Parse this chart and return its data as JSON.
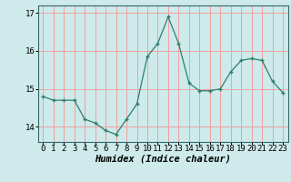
{
  "x": [
    0,
    1,
    2,
    3,
    4,
    5,
    6,
    7,
    8,
    9,
    10,
    11,
    12,
    13,
    14,
    15,
    16,
    17,
    18,
    19,
    20,
    21,
    22,
    23
  ],
  "y": [
    14.8,
    14.7,
    14.7,
    14.7,
    14.2,
    14.1,
    13.9,
    13.8,
    14.2,
    14.6,
    15.85,
    16.2,
    16.9,
    16.2,
    15.15,
    14.95,
    14.95,
    15.0,
    15.45,
    15.75,
    15.8,
    15.75,
    15.2,
    14.9
  ],
  "line_color": "#2e7d6e",
  "marker": "+",
  "bg_color": "#ceeaea",
  "grid_color": "#f0a0a0",
  "ylabel_ticks": [
    14,
    15,
    16,
    17
  ],
  "xlabel": "Humidex (Indice chaleur)",
  "xlim": [
    -0.5,
    23.5
  ],
  "ylim": [
    13.6,
    17.2
  ],
  "xticks": [
    0,
    1,
    2,
    3,
    4,
    5,
    6,
    7,
    8,
    9,
    10,
    11,
    12,
    13,
    14,
    15,
    16,
    17,
    18,
    19,
    20,
    21,
    22,
    23
  ],
  "tick_fontsize": 6.5,
  "xlabel_fontsize": 7.5
}
